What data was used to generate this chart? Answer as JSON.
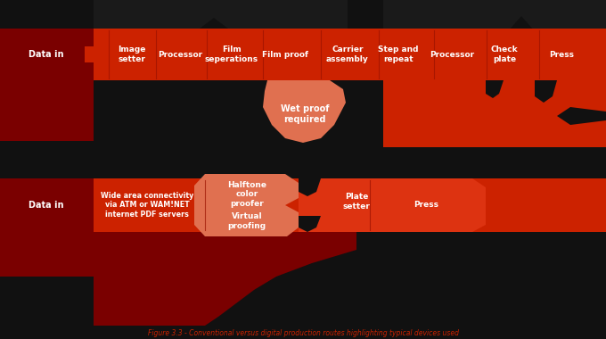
{
  "bg_color": "#111111",
  "dark_red": "#7a0000",
  "main_red": "#cc2200",
  "light_red": "#dd3311",
  "salmon": "#e07050",
  "white": "#ffffff",
  "top_items": [
    "Image\nsetter",
    "Processor",
    "Film\nseperations",
    "Film proof",
    "Carrier\nassembly",
    "Step and\nrepeat",
    "Processor",
    "Check\nplate",
    "Press"
  ],
  "bottom_items_left": "Wide area connectivity\nvia ATM or WAM!NET\ninternet PDF servers",
  "bottom_halftone": "Halftone\ncolor\nproofer",
  "bottom_virtual": "Virtual\nproofing",
  "bottom_plate": "Plate\nsetter",
  "bottom_press": "Press",
  "wet_proof": "Wet proof\nrequired",
  "data_in": "Data in",
  "figure_label": "Figure 3.3 - Conventional versus digital production routes highlighting typical devices used"
}
